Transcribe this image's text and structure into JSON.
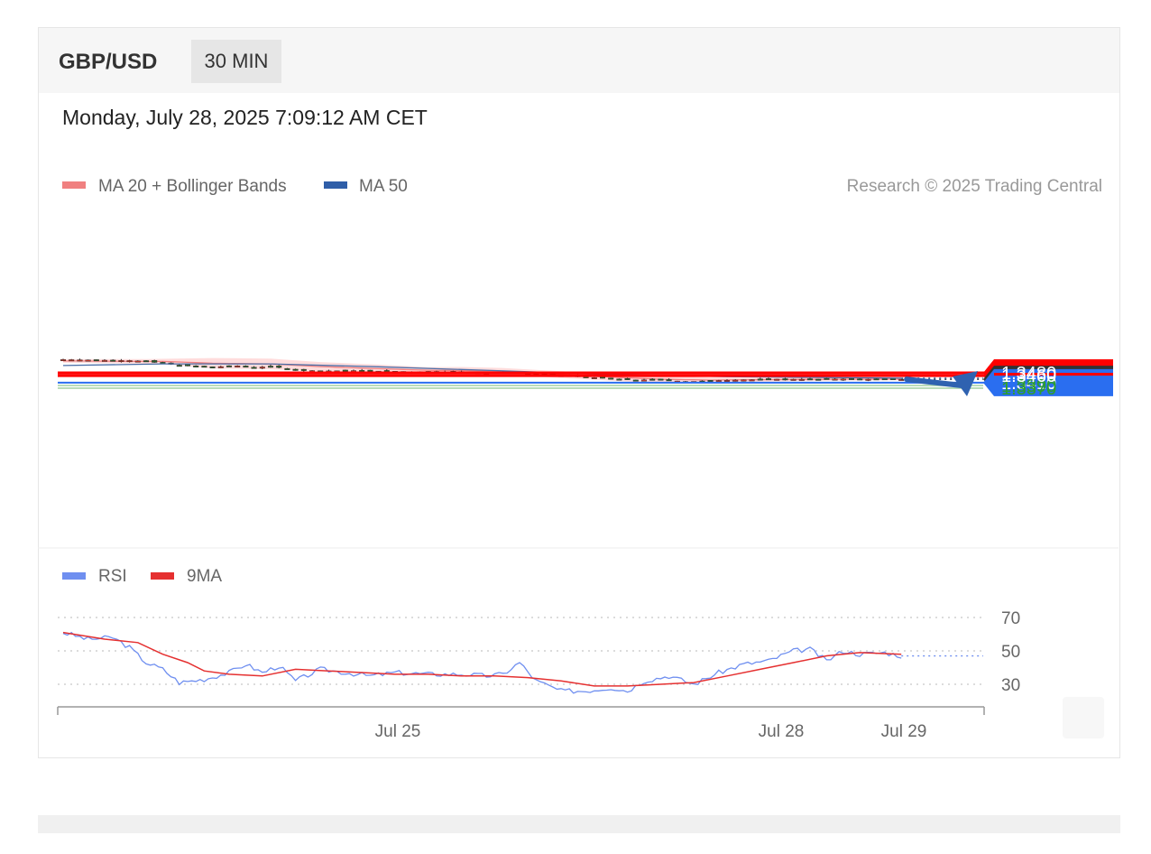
{
  "header": {
    "pair": "GBP/USD",
    "timeframe": "30 MIN"
  },
  "datetime": "Monday, July 28, 2025 7:09:12 AM CET",
  "legend": {
    "ma20": "MA 20 + Bollinger Bands",
    "ma50": "MA 50",
    "copyright": "Research © 2025 Trading Central",
    "rsi": "RSI",
    "rsi_ma": "9MA"
  },
  "colors": {
    "ma20": "#f08080",
    "band_fill": "#ffd6d6",
    "ma50": "#4a6fa8",
    "resistance": "#ff0000",
    "current": "#333333",
    "pivot": "#2a6ef0",
    "support": "#2e9e2e",
    "candle_up": "#c0392b",
    "candle_down": "#2e5e2e",
    "rsi": "#6f8ff0",
    "rsi_ma": "#e53030",
    "arrow": "#2f62b0"
  },
  "chart_data": [
    {
      "type": "candlestick",
      "interval": "30 MIN",
      "ylim": [
        1.3365,
        1.3605
      ],
      "x_ticks": [
        "Jul 25",
        "Jul 28",
        "Jul 29"
      ],
      "levels": [
        {
          "label": "1.3480",
          "value": 1.348,
          "kind": "resistance"
        },
        {
          "label": "1.3460",
          "value": 1.346,
          "kind": "resistance"
        },
        {
          "label": "1.3434",
          "value": 1.3434,
          "kind": "current"
        },
        {
          "label": "1.3410",
          "value": 1.341,
          "kind": "pivot"
        },
        {
          "label": "1.3390",
          "value": 1.339,
          "kind": "support"
        },
        {
          "label": "1.3370",
          "value": 1.337,
          "kind": "support"
        }
      ],
      "price_path": [
        [
          0,
          1.3575
        ],
        [
          4,
          1.3571
        ],
        [
          8,
          1.3568
        ],
        [
          10,
          1.3562
        ],
        [
          12,
          1.3547
        ],
        [
          15,
          1.3529
        ],
        [
          18,
          1.3522
        ],
        [
          21,
          1.353
        ],
        [
          23,
          1.3518
        ],
        [
          25,
          1.3526
        ],
        [
          28,
          1.3502
        ],
        [
          31,
          1.3493
        ],
        [
          35,
          1.3496
        ],
        [
          39,
          1.3491
        ],
        [
          42,
          1.3488
        ],
        [
          45,
          1.349
        ],
        [
          48,
          1.3484
        ],
        [
          51,
          1.3479
        ],
        [
          53,
          1.3486
        ],
        [
          55,
          1.3477
        ],
        [
          57,
          1.3465
        ],
        [
          60,
          1.3461
        ],
        [
          63,
          1.3451
        ],
        [
          66,
          1.3436
        ],
        [
          69,
          1.3428
        ],
        [
          72,
          1.3433
        ],
        [
          75,
          1.3416
        ],
        [
          78,
          1.3424
        ],
        [
          82,
          1.343
        ],
        [
          86,
          1.3435
        ],
        [
          90,
          1.3434
        ],
        [
          94,
          1.3437
        ],
        [
          98,
          1.3434
        ],
        [
          101,
          1.3434
        ]
      ],
      "ma50_path": [
        [
          0,
          1.3532
        ],
        [
          12,
          1.3544
        ],
        [
          25,
          1.3544
        ],
        [
          38,
          1.3523
        ],
        [
          52,
          1.3496
        ],
        [
          65,
          1.347
        ],
        [
          80,
          1.3453
        ],
        [
          90,
          1.3448
        ],
        [
          101,
          1.3442
        ]
      ],
      "bands": {
        "upper": [
          [
            0,
            1.3578
          ],
          [
            10,
            1.3578
          ],
          [
            18,
            1.3586
          ],
          [
            25,
            1.3582
          ],
          [
            31,
            1.3557
          ],
          [
            38,
            1.3539
          ],
          [
            44,
            1.352
          ],
          [
            48,
            1.3522
          ],
          [
            53,
            1.3515
          ],
          [
            57,
            1.3501
          ],
          [
            62,
            1.3485
          ],
          [
            66,
            1.3476
          ],
          [
            72,
            1.346
          ],
          [
            78,
            1.3446
          ],
          [
            86,
            1.3444
          ],
          [
            94,
            1.3446
          ],
          [
            101,
            1.3442
          ]
        ],
        "lower": [
          [
            0,
            1.3552
          ],
          [
            12,
            1.3543
          ],
          [
            18,
            1.3511
          ],
          [
            25,
            1.3505
          ],
          [
            31,
            1.3492
          ],
          [
            38,
            1.348
          ],
          [
            44,
            1.3476
          ],
          [
            50,
            1.3468
          ],
          [
            55,
            1.3466
          ],
          [
            59,
            1.3446
          ],
          [
            64,
            1.3431
          ],
          [
            68,
            1.3418
          ],
          [
            72,
            1.3409
          ],
          [
            78,
            1.341
          ],
          [
            84,
            1.3418
          ],
          [
            92,
            1.3423
          ],
          [
            101,
            1.3428
          ]
        ]
      },
      "forecast_target": 1.348
    },
    {
      "type": "line",
      "name": "RSI",
      "ylim": [
        20,
        80
      ],
      "y_ticks": [
        70,
        50,
        30
      ],
      "rsi_path": [
        [
          0,
          61
        ],
        [
          3,
          57
        ],
        [
          6,
          58
        ],
        [
          8,
          52
        ],
        [
          10,
          43
        ],
        [
          12,
          39
        ],
        [
          14,
          31
        ],
        [
          17,
          33
        ],
        [
          20,
          37
        ],
        [
          22,
          42
        ],
        [
          24,
          37
        ],
        [
          26,
          41
        ],
        [
          28,
          32
        ],
        [
          31,
          39
        ],
        [
          34,
          37
        ],
        [
          37,
          35
        ],
        [
          40,
          37
        ],
        [
          44,
          36
        ],
        [
          48,
          36
        ],
        [
          51,
          35
        ],
        [
          53,
          36
        ],
        [
          55,
          43
        ],
        [
          57,
          32
        ],
        [
          60,
          26
        ],
        [
          63,
          26
        ],
        [
          66,
          28
        ],
        [
          68,
          26
        ],
        [
          70,
          32
        ],
        [
          73,
          35
        ],
        [
          76,
          30
        ],
        [
          79,
          37
        ],
        [
          82,
          42
        ],
        [
          85,
          44
        ],
        [
          88,
          50
        ],
        [
          90,
          51
        ],
        [
          92,
          44
        ],
        [
          94,
          50
        ],
        [
          96,
          48
        ],
        [
          99,
          49
        ],
        [
          101,
          47
        ]
      ],
      "ma_path": [
        [
          0,
          61
        ],
        [
          5,
          57
        ],
        [
          9,
          55
        ],
        [
          12,
          48
        ],
        [
          15,
          43
        ],
        [
          17,
          38
        ],
        [
          20,
          36
        ],
        [
          24,
          35
        ],
        [
          28,
          39
        ],
        [
          32,
          38
        ],
        [
          36,
          37
        ],
        [
          40,
          36
        ],
        [
          44,
          36
        ],
        [
          48,
          35
        ],
        [
          52,
          35
        ],
        [
          56,
          34
        ],
        [
          60,
          32
        ],
        [
          64,
          29
        ],
        [
          68,
          29
        ],
        [
          72,
          30
        ],
        [
          76,
          31
        ],
        [
          80,
          35
        ],
        [
          84,
          39
        ],
        [
          88,
          43
        ],
        [
          92,
          47
        ],
        [
          96,
          49
        ],
        [
          101,
          48
        ]
      ]
    }
  ]
}
